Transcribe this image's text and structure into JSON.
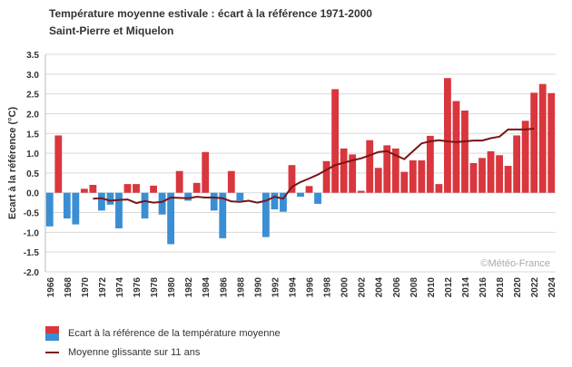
{
  "chart_data": {
    "type": "bar",
    "title": "Température moyenne estivale : écart à la référence 1971-2000",
    "subtitle": "Saint-Pierre et Miquelon",
    "ylabel": "Ecart à la référence (°C)",
    "xlabel": "",
    "ylim": [
      -2.0,
      3.5
    ],
    "yticks": [
      "3.5",
      "3.0",
      "2.5",
      "2.0",
      "1.5",
      "1.0",
      "0.5",
      "0.0",
      "-0.5",
      "-1.0",
      "-1.5",
      "-2.0"
    ],
    "grid": true,
    "watermark": "©Météo-France",
    "years": [
      1966,
      1967,
      1968,
      1969,
      1970,
      1971,
      1972,
      1973,
      1974,
      1975,
      1976,
      1977,
      1978,
      1979,
      1980,
      1981,
      1982,
      1983,
      1984,
      1985,
      1986,
      1987,
      1988,
      1989,
      1990,
      1991,
      1992,
      1993,
      1994,
      1995,
      1996,
      1997,
      1998,
      1999,
      2000,
      2001,
      2002,
      2003,
      2004,
      2005,
      2006,
      2007,
      2008,
      2009,
      2010,
      2011,
      2012,
      2013,
      2014,
      2015,
      2016,
      2017,
      2018,
      2019,
      2020,
      2021,
      2022,
      2023,
      2024
    ],
    "xtick_labels": [
      "1966",
      "1968",
      "1970",
      "1972",
      "1974",
      "1976",
      "1978",
      "1980",
      "1982",
      "1984",
      "1986",
      "1988",
      "1990",
      "1992",
      "1994",
      "1996",
      "1998",
      "2000",
      "2002",
      "2004",
      "2006",
      "2008",
      "2010",
      "2012",
      "2014",
      "2016",
      "2018",
      "2020",
      "2022",
      "2024"
    ],
    "series": [
      {
        "name": "Ecart à la référence de la température moyenne",
        "type": "bar",
        "color_positive": "#d9363e",
        "color_negative": "#3a8ed3",
        "values": [
          -0.85,
          1.45,
          -0.65,
          -0.8,
          0.1,
          0.2,
          -0.45,
          -0.3,
          -0.9,
          0.22,
          0.22,
          -0.65,
          0.18,
          -0.55,
          -1.3,
          0.55,
          -0.2,
          0.25,
          1.03,
          -0.45,
          -1.15,
          0.55,
          -0.2,
          0.0,
          0.0,
          -1.12,
          -0.42,
          -0.48,
          0.7,
          -0.1,
          0.17,
          -0.28,
          0.8,
          2.62,
          1.12,
          0.97,
          0.05,
          1.33,
          0.63,
          1.2,
          1.12,
          0.53,
          0.82,
          0.82,
          1.44,
          0.22,
          2.9,
          2.32,
          2.08,
          0.75,
          0.88,
          1.05,
          0.95,
          0.68,
          1.45,
          1.82,
          2.53,
          2.75,
          2.52
        ]
      },
      {
        "name": "Moyenne glissante sur 11 ans",
        "type": "line",
        "color": "#7a1518",
        "start_year": 1971,
        "values": [
          -0.15,
          -0.14,
          -0.2,
          -0.18,
          -0.17,
          -0.26,
          -0.21,
          -0.25,
          -0.23,
          -0.12,
          -0.13,
          -0.14,
          -0.1,
          -0.12,
          -0.12,
          -0.14,
          -0.22,
          -0.23,
          -0.2,
          -0.25,
          -0.2,
          -0.1,
          -0.15,
          0.15,
          0.27,
          0.36,
          0.46,
          0.58,
          0.7,
          0.76,
          0.82,
          0.87,
          0.95,
          1.03,
          1.05,
          0.95,
          0.85,
          1.05,
          1.25,
          1.3,
          1.33,
          1.3,
          1.28,
          1.3,
          1.32,
          1.32,
          1.38,
          1.42,
          1.6,
          1.6,
          1.6,
          1.62
        ]
      }
    ],
    "legend": [
      {
        "label": "Ecart à la référence de la température moyenne"
      },
      {
        "label": "Moyenne glissante sur 11 ans"
      }
    ]
  }
}
